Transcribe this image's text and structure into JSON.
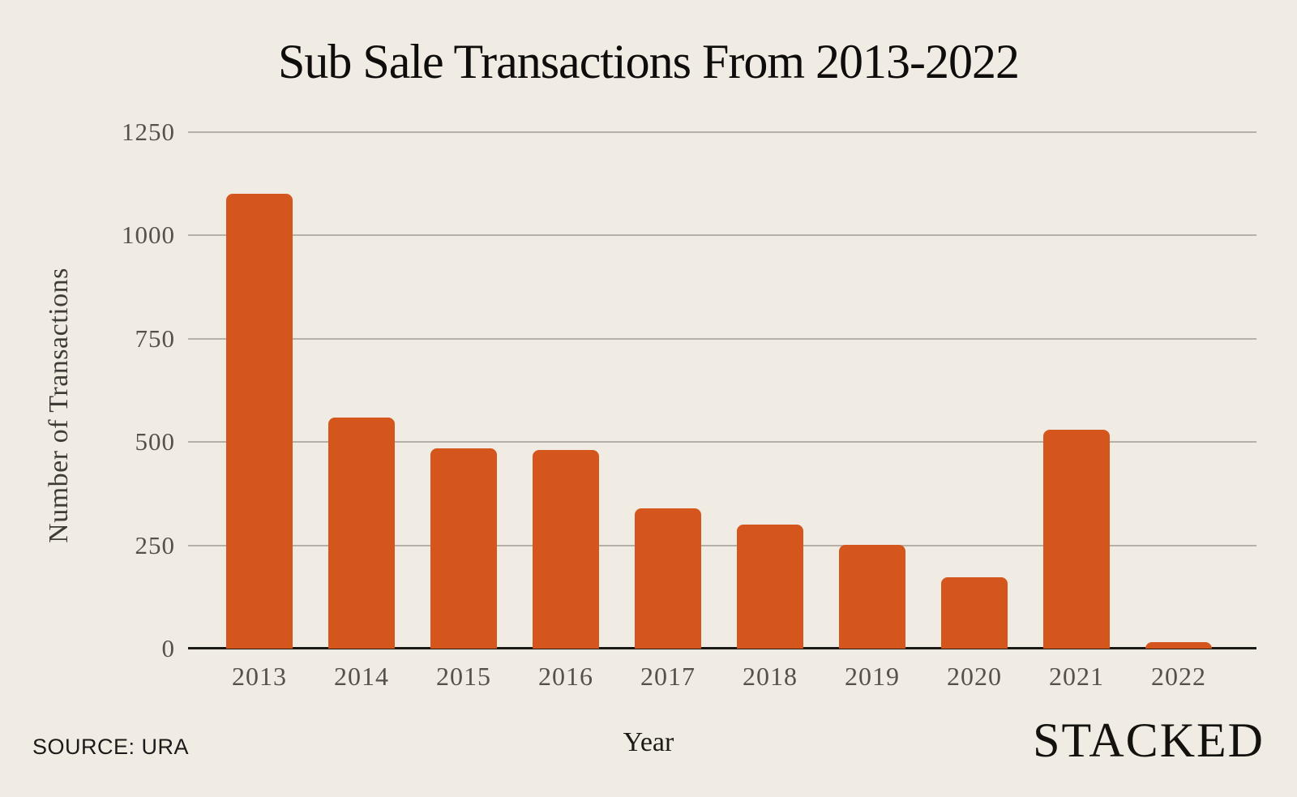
{
  "chart_data": {
    "type": "bar",
    "title": "Sub Sale Transactions From 2013-2022",
    "categories": [
      "2013",
      "2014",
      "2015",
      "2016",
      "2017",
      "2018",
      "2019",
      "2020",
      "2021",
      "2022"
    ],
    "values": [
      1100,
      560,
      485,
      480,
      340,
      300,
      252,
      172,
      530,
      15
    ],
    "xlabel": "Year",
    "ylabel": "Number of Transactions",
    "ylim": [
      0,
      1250
    ],
    "yticks": [
      0,
      250,
      500,
      750,
      1000,
      1250
    ],
    "grid": true,
    "legend": false,
    "bar_color": "#d4561d",
    "background_color": "#f1ece3",
    "gridline_color": "#b5b0a8",
    "axis_color": "#1c1a17",
    "tick_label_color": "#55514a"
  },
  "footer": {
    "source": "SOURCE: URA",
    "brand": "STACKED"
  }
}
